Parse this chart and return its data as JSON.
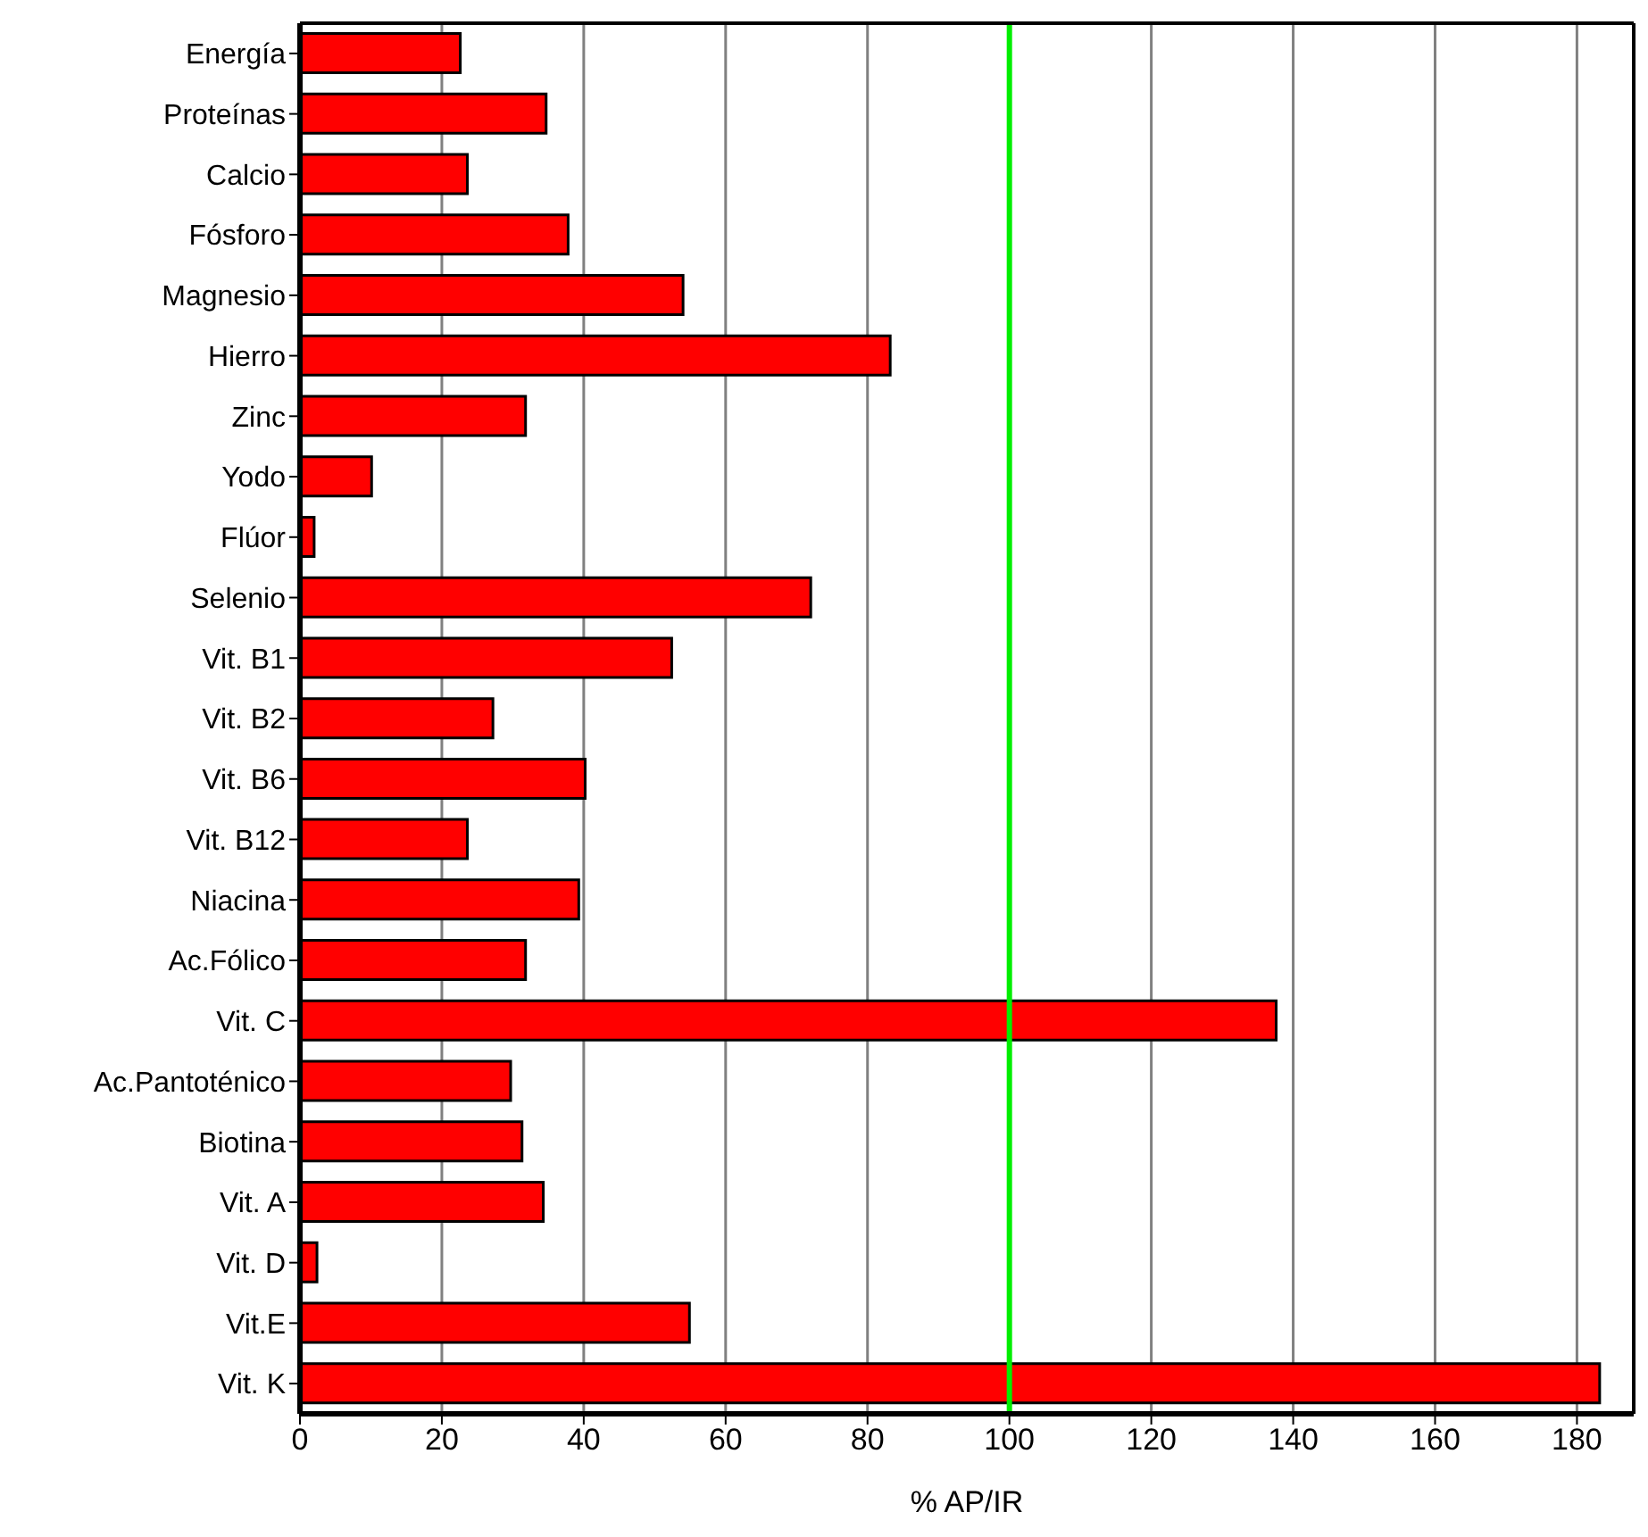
{
  "chart_data": {
    "type": "bar",
    "orientation": "horizontal",
    "xlabel": "% AP/IR",
    "categories": [
      "Energía",
      "Proteínas",
      "Calcio",
      "Fósforo",
      "Magnesio",
      "Hierro",
      "Zinc",
      "Yodo",
      "Flúor",
      "Selenio",
      "Vit. B1",
      "Vit. B2",
      "Vit. B6",
      "Vit. B12",
      "Niacina",
      "Ac.Fólico",
      "Vit. C",
      "Ac.Pantoténico",
      "Biotina",
      "Vit. A",
      "Vit. D",
      "Vit.E",
      "Vit. K"
    ],
    "values": [
      22.6,
      34.7,
      23.6,
      37.8,
      54.0,
      83.2,
      31.8,
      10.1,
      2.0,
      72.0,
      52.4,
      27.2,
      40.2,
      23.6,
      39.3,
      31.8,
      137.6,
      29.7,
      31.3,
      34.3,
      2.4,
      54.9,
      183.2
    ],
    "color": "#ff0000",
    "xlim": [
      0,
      188
    ],
    "xticks": [
      0,
      20,
      40,
      60,
      80,
      100,
      120,
      140,
      160,
      180
    ],
    "grid": "x",
    "ref_lines": [
      {
        "axis": "x",
        "value": 100,
        "color": "#00ee00"
      }
    ]
  }
}
